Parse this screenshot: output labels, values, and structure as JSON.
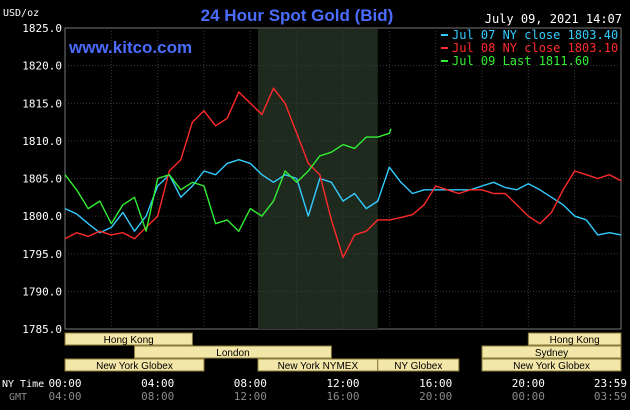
{
  "header": {
    "title": "24 Hour Spot Gold (Bid)",
    "date": "July 09, 2021 14:07",
    "website": "www.kitco.com",
    "unit": "USD/oz"
  },
  "legend": [
    {
      "label": "Jul 07 NY close 1803.40",
      "color": "#33ccff"
    },
    {
      "label": "Jul 08 NY close 1803.10",
      "color": "#ff2a2a"
    },
    {
      "label": "Jul 09 Last 1811.60",
      "color": "#33ee33"
    }
  ],
  "time_labels": {
    "ny_label": "NY Time",
    "gmt_label": "GMT",
    "ny": [
      "00:00",
      "04:00",
      "08:00",
      "12:00",
      "16:00",
      "20:00",
      "23:59"
    ],
    "gmt": [
      "04:00",
      "08:00",
      "12:00",
      "16:00",
      "20:00",
      "00:00",
      "03:59"
    ]
  },
  "sessions": [
    {
      "label": "Hong Kong",
      "start": 0.0,
      "end": 5.5
    },
    {
      "label": "London",
      "start": 3.0,
      "end": 11.5
    },
    {
      "label": "New York Globex",
      "start": 0.0,
      "end": 6.0
    },
    {
      "label": "New York NYMEX",
      "start": 8.33,
      "end": 13.5
    },
    {
      "label": "NY Globex",
      "start": 13.5,
      "end": 17.0
    },
    {
      "label": "Hong Kong",
      "start": 20.0,
      "end": 24.0
    },
    {
      "label": "Sydney",
      "start": 18.0,
      "end": 24.0
    },
    {
      "label": "New York Globex",
      "start": 18.0,
      "end": 24.0
    }
  ],
  "chart_data": {
    "type": "line",
    "title": "24 Hour Spot Gold (Bid)",
    "ylabel": "USD/oz",
    "xlabel": "",
    "ylim": [
      1785.0,
      1825.0
    ],
    "yticks": [
      1785.0,
      1790.0,
      1795.0,
      1800.0,
      1805.0,
      1810.0,
      1815.0,
      1820.0,
      1825.0
    ],
    "xlim": [
      0,
      24
    ],
    "grid": true,
    "shaded_x": [
      8.33,
      13.5
    ],
    "series": [
      {
        "name": "Jul 07 NY close 1803.40",
        "color": "#33ccff",
        "x": [
          0,
          0.5,
          1.0,
          1.5,
          2.0,
          2.5,
          3.0,
          3.5,
          4.0,
          4.5,
          5.0,
          5.5,
          6.0,
          6.5,
          7.0,
          7.5,
          8.0,
          8.5,
          9.0,
          9.5,
          10.0,
          10.5,
          11.0,
          11.5,
          12.0,
          12.5,
          13.0,
          13.5,
          14.0,
          14.5,
          15.0,
          15.5,
          16.0,
          16.5,
          17.0,
          17.5,
          18.0,
          18.5,
          19.0,
          19.5,
          20.0,
          20.5,
          21.0,
          21.5,
          22.0,
          22.5,
          23.0,
          23.5,
          24.0
        ],
        "y": [
          1801.0,
          1800.3,
          1799.0,
          1797.8,
          1798.5,
          1800.5,
          1798.0,
          1800.0,
          1804.0,
          1805.5,
          1802.5,
          1804.0,
          1806.0,
          1805.5,
          1807.0,
          1807.5,
          1807.0,
          1805.5,
          1804.5,
          1805.5,
          1805.0,
          1800.0,
          1805.0,
          1804.5,
          1802.0,
          1803.0,
          1801.0,
          1802.0,
          1806.5,
          1804.5,
          1803.0,
          1803.5,
          1803.5,
          1803.5,
          1803.5,
          1803.5,
          1804.0,
          1804.5,
          1803.8,
          1803.5,
          1804.3,
          1803.5,
          1802.5,
          1801.5,
          1800.0,
          1799.5,
          1797.5,
          1797.8,
          1797.5
        ]
      },
      {
        "name": "Jul 08 NY close 1803.10",
        "color": "#ff2a2a",
        "x": [
          0,
          0.5,
          1.0,
          1.5,
          2.0,
          2.5,
          3.0,
          3.5,
          4.0,
          4.5,
          5.0,
          5.5,
          6.0,
          6.5,
          7.0,
          7.5,
          8.0,
          8.5,
          9.0,
          9.5,
          10.0,
          10.5,
          11.0,
          11.5,
          12.0,
          12.5,
          13.0,
          13.5,
          14.0,
          14.5,
          15.0,
          15.5,
          16.0,
          16.5,
          17.0,
          17.5,
          18.0,
          18.5,
          19.0,
          19.5,
          20.0,
          20.5,
          21.0,
          21.5,
          22.0,
          22.5,
          23.0,
          23.5,
          24.0
        ],
        "y": [
          1797.0,
          1797.8,
          1797.3,
          1798.0,
          1797.5,
          1797.8,
          1797.0,
          1798.5,
          1800.0,
          1806.0,
          1807.5,
          1812.5,
          1814.0,
          1812.0,
          1813.0,
          1816.5,
          1815.0,
          1813.5,
          1817.0,
          1815.0,
          1811.0,
          1807.0,
          1805.5,
          1799.5,
          1794.5,
          1797.5,
          1798.0,
          1799.5,
          1799.5,
          1799.8,
          1800.2,
          1801.5,
          1804.0,
          1803.5,
          1803.0,
          1803.5,
          1803.5,
          1803.0,
          1803.0,
          1801.5,
          1800.0,
          1799.0,
          1800.5,
          1803.5,
          1806.0,
          1805.5,
          1805.0,
          1805.5,
          1804.7
        ]
      },
      {
        "name": "Jul 09 Last 1811.60",
        "color": "#33ee33",
        "x": [
          0,
          0.5,
          1.0,
          1.5,
          2.0,
          2.5,
          3.0,
          3.5,
          4.0,
          4.5,
          5.0,
          5.5,
          6.0,
          6.5,
          7.0,
          7.5,
          8.0,
          8.5,
          9.0,
          9.5,
          10.0,
          10.5,
          11.0,
          11.5,
          12.0,
          12.5,
          13.0,
          13.5,
          14.0,
          14.07
        ],
        "y": [
          1805.5,
          1803.5,
          1801.0,
          1802.0,
          1799.0,
          1801.5,
          1802.5,
          1798.0,
          1805.0,
          1805.5,
          1803.5,
          1804.5,
          1804.0,
          1799.0,
          1799.5,
          1798.0,
          1801.0,
          1800.0,
          1802.0,
          1806.0,
          1804.5,
          1806.0,
          1808.0,
          1808.5,
          1809.5,
          1809.0,
          1810.5,
          1810.5,
          1811.0,
          1811.6
        ]
      }
    ]
  }
}
